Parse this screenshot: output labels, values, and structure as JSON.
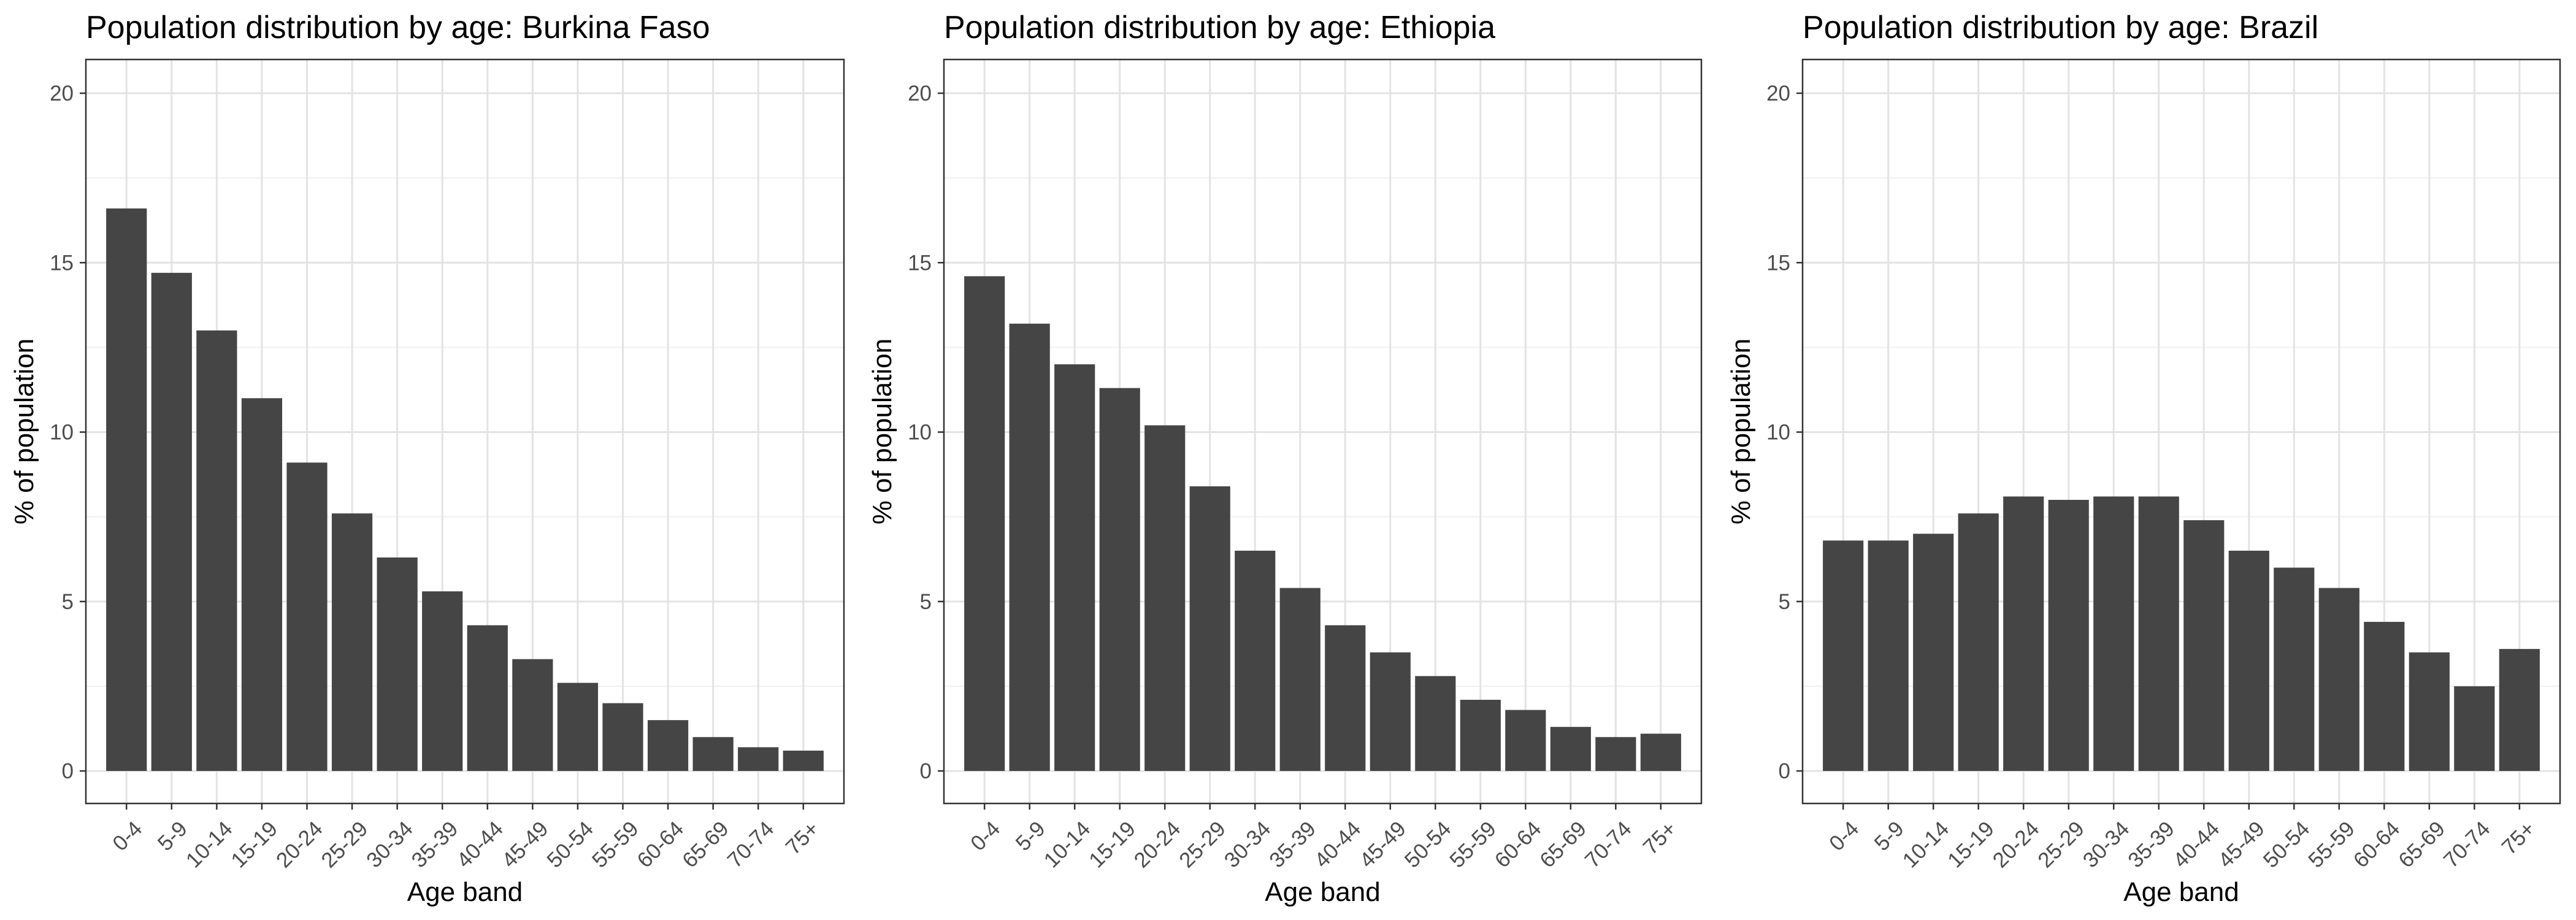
{
  "chart_data": [
    {
      "type": "bar",
      "title": "Population distribution by age: Burkina Faso",
      "xlabel": "Age band",
      "ylabel": "% of population",
      "ylim": [
        0,
        20
      ],
      "yticks": [
        "0",
        "5",
        "10",
        "15",
        "20"
      ],
      "grid": true,
      "categories": [
        "0-4",
        "5-9",
        "10-14",
        "15-19",
        "20-24",
        "25-29",
        "30-34",
        "35-39",
        "40-44",
        "45-49",
        "50-54",
        "55-59",
        "60-64",
        "65-69",
        "70-74",
        "75+"
      ],
      "values": [
        16.6,
        14.7,
        13.0,
        11.0,
        9.1,
        7.6,
        6.3,
        5.3,
        4.3,
        3.3,
        2.6,
        2.0,
        1.5,
        1.0,
        0.7,
        0.6
      ],
      "bar_color": "#454545"
    },
    {
      "type": "bar",
      "title": "Population distribution by age: Ethiopia",
      "xlabel": "Age band",
      "ylabel": "% of population",
      "ylim": [
        0,
        20
      ],
      "yticks": [
        "0",
        "5",
        "10",
        "15",
        "20"
      ],
      "grid": true,
      "categories": [
        "0-4",
        "5-9",
        "10-14",
        "15-19",
        "20-24",
        "25-29",
        "30-34",
        "35-39",
        "40-44",
        "45-49",
        "50-54",
        "55-59",
        "60-64",
        "65-69",
        "70-74",
        "75+"
      ],
      "values": [
        14.6,
        13.2,
        12.0,
        11.3,
        10.2,
        8.4,
        6.5,
        5.4,
        4.3,
        3.5,
        2.8,
        2.1,
        1.8,
        1.3,
        1.0,
        1.1
      ],
      "bar_color": "#454545"
    },
    {
      "type": "bar",
      "title": "Population distribution by age: Brazil",
      "xlabel": "Age band",
      "ylabel": "% of population",
      "ylim": [
        0,
        20
      ],
      "yticks": [
        "0",
        "5",
        "10",
        "15",
        "20"
      ],
      "grid": true,
      "categories": [
        "0-4",
        "5-9",
        "10-14",
        "15-19",
        "20-24",
        "25-29",
        "30-34",
        "35-39",
        "40-44",
        "45-49",
        "50-54",
        "55-59",
        "60-64",
        "65-69",
        "70-74",
        "75+"
      ],
      "values": [
        6.8,
        6.8,
        7.0,
        7.6,
        8.1,
        8.0,
        8.1,
        8.1,
        7.4,
        6.5,
        6.0,
        5.4,
        4.4,
        3.5,
        2.5,
        3.6
      ],
      "bar_color": "#454545"
    }
  ]
}
